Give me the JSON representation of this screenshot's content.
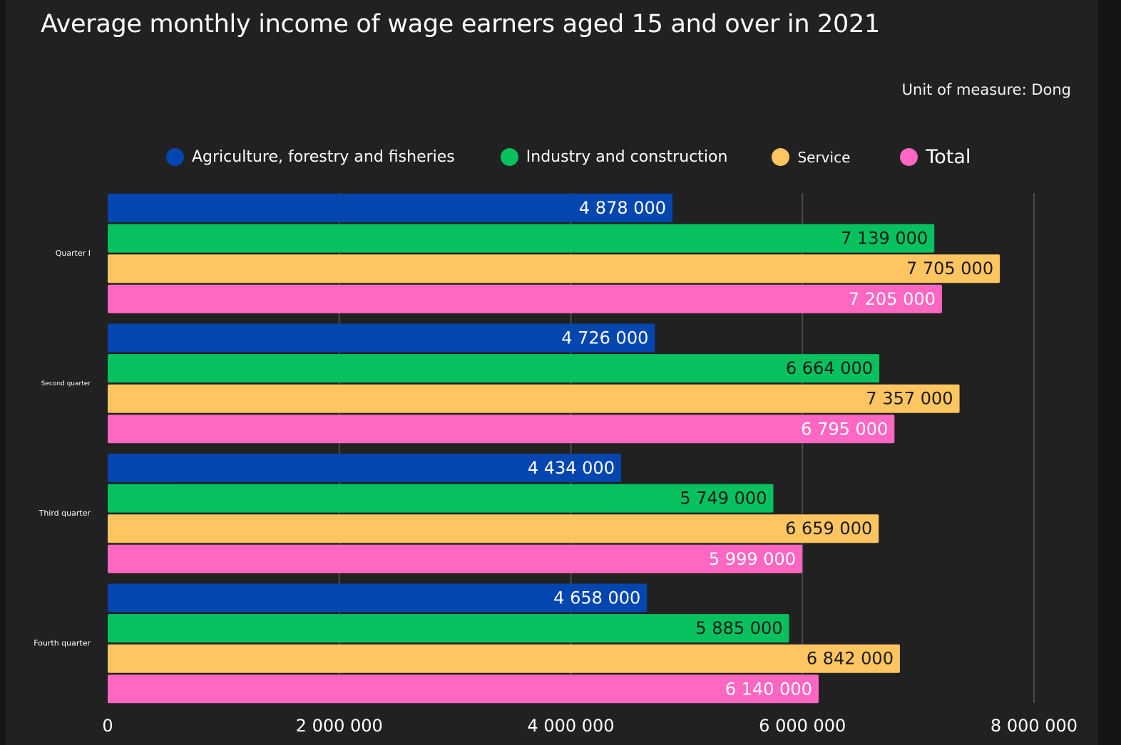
{
  "title": "Average monthly income of wage earners aged 15 and over in 2021",
  "unit": "Unit of measure: Dong",
  "chart_data": {
    "type": "bar",
    "orientation": "horizontal",
    "title": "Average monthly income of wage earners aged 15 and over in 2021",
    "xlabel": "",
    "ylabel": "",
    "xlim": [
      0,
      8000000
    ],
    "x_ticks": [
      0,
      2000000,
      4000000,
      6000000,
      8000000
    ],
    "x_tick_labels": [
      "0",
      "2 000 000",
      "4 000 000",
      "6 000 000",
      "8 000 000"
    ],
    "grid": true,
    "legend_position": "top",
    "categories": [
      "Quarter I",
      "Second quarter",
      "Third quarter",
      "Fourth quarter"
    ],
    "series": [
      {
        "name": "Agriculture, forestry and fisheries",
        "color": "#0346b0",
        "label_color": "#ffffff",
        "values": [
          4878000,
          4726000,
          4434000,
          4658000
        ],
        "labels": [
          "4 878 000",
          "4 726 000",
          "4 434 000",
          "4 658 000"
        ]
      },
      {
        "name": "Industry and construction",
        "color": "#07c15f",
        "label_color": "#1b1b1b",
        "values": [
          7139000,
          6664000,
          5749000,
          5885000
        ],
        "labels": [
          "7 139 000",
          "6 664 000",
          "5 749 000",
          "5 885 000"
        ]
      },
      {
        "name": "Service",
        "color": "#fec560",
        "label_color": "#1b1b1b",
        "values": [
          7705000,
          7357000,
          6659000,
          6842000
        ],
        "labels": [
          "7 705 000",
          "7 357 000",
          "6 659 000",
          "6 842 000"
        ]
      },
      {
        "name": "Total",
        "color": "#ff67c2",
        "label_color": "#ffffff",
        "values": [
          7205000,
          6795000,
          5999000,
          6140000
        ],
        "labels": [
          "7 205 000",
          "6 795 000",
          "5 999 000",
          "6 140 000"
        ]
      }
    ]
  }
}
